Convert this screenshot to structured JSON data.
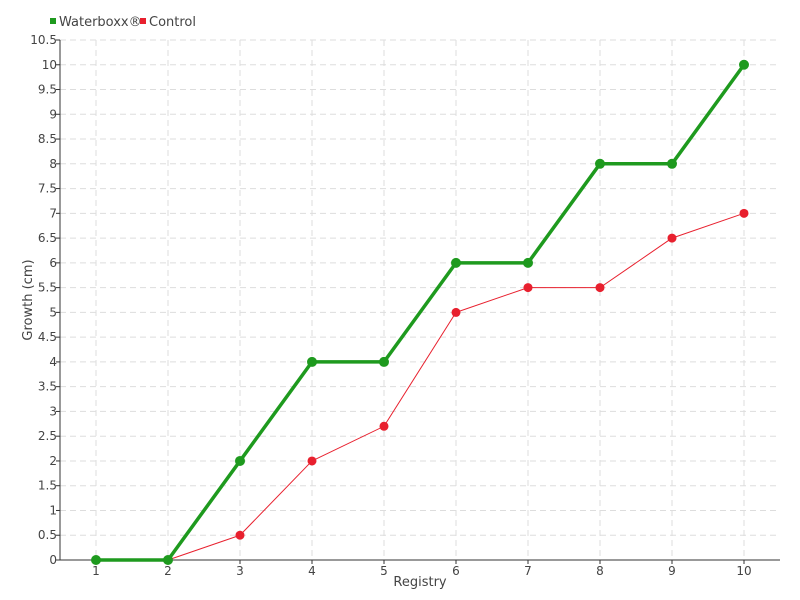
{
  "chart_data": {
    "type": "line",
    "x": [
      1,
      2,
      3,
      4,
      5,
      6,
      7,
      8,
      9,
      10
    ],
    "xlabel": "Registry",
    "ylabel": "Growth (cm)",
    "ylim": [
      0,
      10.5
    ],
    "y_ticks": [
      0,
      0.5,
      1,
      1.5,
      2,
      2.5,
      3,
      3.5,
      4,
      4.5,
      5,
      5.5,
      6,
      6.5,
      7,
      7.5,
      8,
      8.5,
      9,
      9.5,
      10,
      10.5
    ],
    "x_ticks": [
      1,
      2,
      3,
      4,
      5,
      6,
      7,
      8,
      9,
      10
    ],
    "grid": true,
    "legend_position": "top-left",
    "series": [
      {
        "name": "Waterboxx®",
        "color": "#1e9a1e",
        "values": [
          0,
          0,
          2,
          4,
          4,
          6,
          6,
          8,
          8,
          10
        ]
      },
      {
        "name": "Control",
        "color": "#e8202e",
        "values": [
          0,
          0,
          0.5,
          2,
          2.7,
          5,
          5.5,
          5.5,
          6.5,
          7
        ]
      }
    ]
  }
}
